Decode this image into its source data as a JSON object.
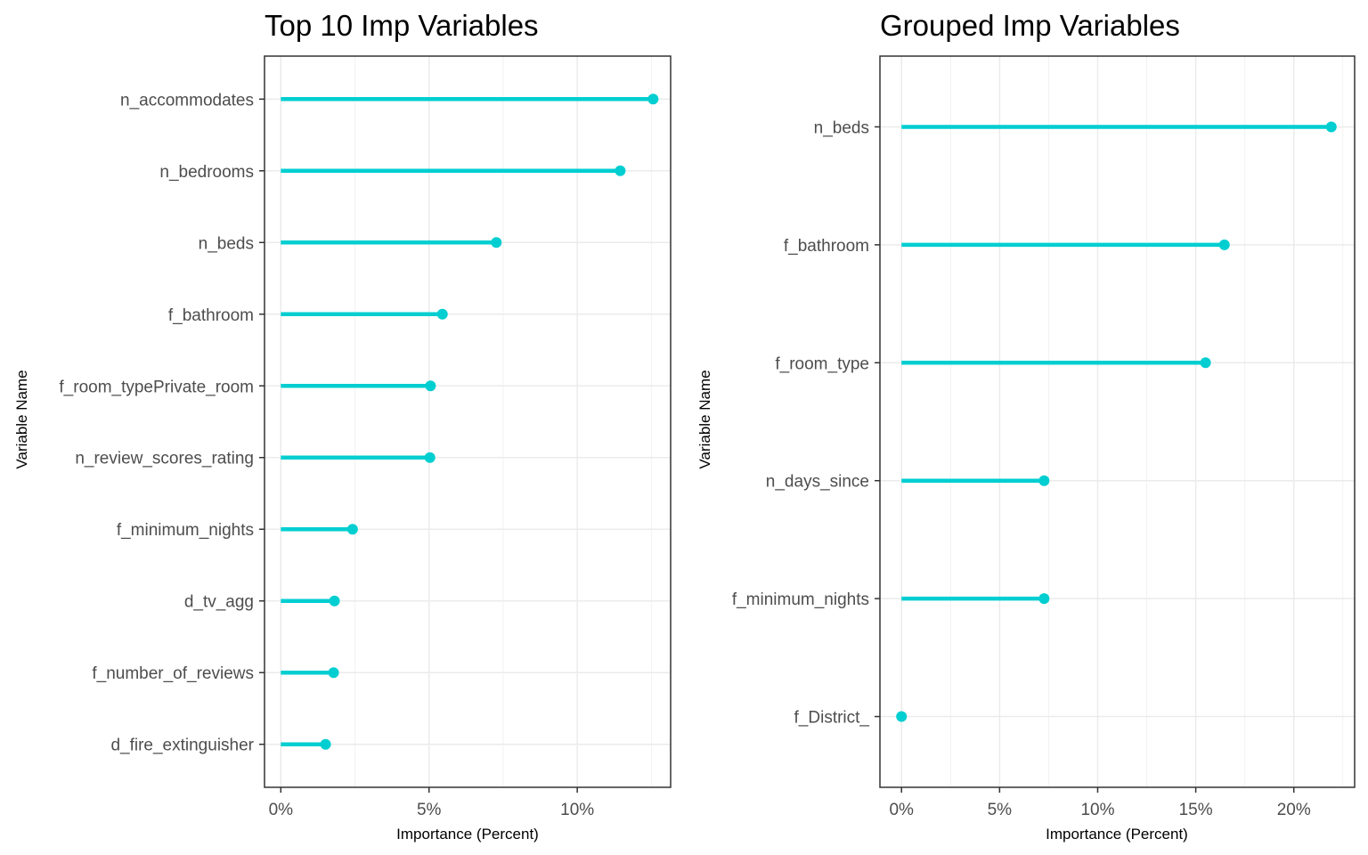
{
  "chart_data": [
    {
      "type": "lollipop",
      "orientation": "horizontal",
      "title": "Top 10 Imp Variables",
      "xlabel": "Importance (Percent)",
      "ylabel": "Variable Name",
      "xlim": [
        -0.0055,
        0.1315
      ],
      "x_ticks": [
        0,
        0.05,
        0.1
      ],
      "x_tick_labels": [
        "0%",
        "5%",
        "10%"
      ],
      "x_minor_ticks": [
        0.025,
        0.075,
        0.125
      ],
      "grid": true,
      "color": "#00CED1",
      "categories": [
        "n_accommodates",
        "n_bedrooms",
        "n_beds",
        "f_bathroom",
        "f_room_typePrivate_room",
        "n_review_scores_rating",
        "f_minimum_nights",
        "d_tv_agg",
        "f_number_of_reviews",
        "d_fire_extinguisher"
      ],
      "values": [
        0.1256,
        0.1145,
        0.0727,
        0.0545,
        0.0505,
        0.0503,
        0.0242,
        0.0181,
        0.0178,
        0.0151
      ]
    },
    {
      "type": "lollipop",
      "orientation": "horizontal",
      "title": "Grouped Imp Variables",
      "xlabel": "Importance (Percent)",
      "ylabel": "Variable Name",
      "xlim": [
        -0.011,
        0.231
      ],
      "x_ticks": [
        0,
        0.05,
        0.1,
        0.15,
        0.2
      ],
      "x_tick_labels": [
        "0%",
        "5%",
        "10%",
        "15%",
        "20%"
      ],
      "x_minor_ticks": [
        0.025,
        0.075,
        0.125,
        0.175,
        0.225
      ],
      "grid": true,
      "color": "#00CED1",
      "categories": [
        "n_beds",
        "f_bathroom",
        "f_room_type",
        "n_days_since",
        "f_minimum_nights",
        "f_District_"
      ],
      "values": [
        0.2191,
        0.1646,
        0.155,
        0.0727,
        0.0727,
        0.0
      ]
    }
  ]
}
